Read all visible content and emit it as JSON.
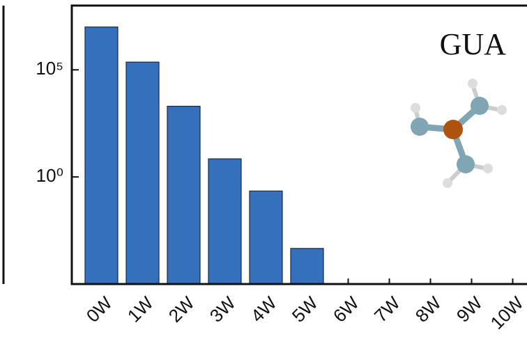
{
  "chart_data": {
    "type": "bar",
    "annotation": "GUA",
    "categories": [
      "0W",
      "1W",
      "2W",
      "3W",
      "4W",
      "5W",
      "6W",
      "7W",
      "8W",
      "9W",
      "10W"
    ],
    "values": [
      10000000,
      230000,
      2000,
      7,
      0.22,
      0.00046,
      null,
      null,
      null,
      null,
      null
    ],
    "color": "#3570bd",
    "log_scale": true,
    "ylim": [
      1e-05,
      100000000
    ],
    "yticks": [
      {
        "value": 1,
        "label": "10⁰"
      },
      {
        "value": 100000,
        "label": "10⁵"
      }
    ]
  }
}
